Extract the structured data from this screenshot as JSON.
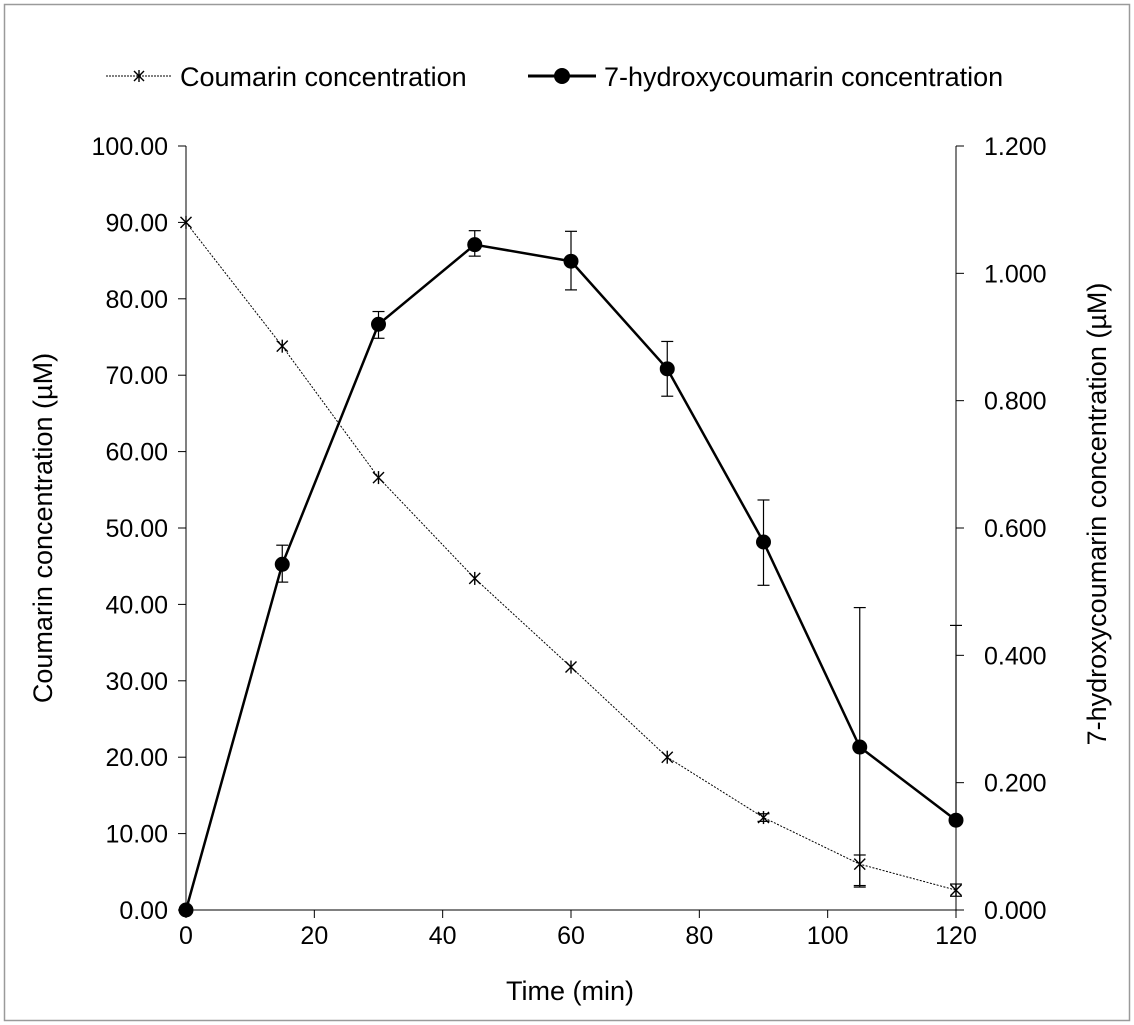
{
  "chart_data": {
    "type": "line",
    "x": [
      0,
      15,
      30,
      45,
      60,
      75,
      90,
      105,
      120
    ],
    "xlabel": "Time (min)",
    "xlim": [
      0,
      120
    ],
    "xticks": [
      "0",
      "20",
      "40",
      "60",
      "80",
      "100",
      "120"
    ],
    "ylabel": "Coumarin concentration (µM)",
    "ylim": [
      0,
      100
    ],
    "yticks": [
      "0.00",
      "10.00",
      "20.00",
      "30.00",
      "40.00",
      "50.00",
      "60.00",
      "70.00",
      "80.00",
      "90.00",
      "100.00"
    ],
    "y2label": "7-hydroxycoumarin concentration (µM)",
    "y2lim": [
      0,
      1.2
    ],
    "y2ticks": [
      "0.000",
      "0.200",
      "0.400",
      "0.600",
      "0.800",
      "1.000",
      "1.200"
    ],
    "legend_position": "top",
    "grid": false,
    "series": [
      {
        "name": "Coumarin concentration",
        "axis": "left",
        "marker": "asterisk",
        "line_style": "dotted-thin",
        "color": "#000000",
        "values": [
          90.0,
          73.8,
          56.6,
          43.4,
          31.8,
          20.0,
          12.1,
          6.0,
          2.6
        ],
        "err_low": [
          0,
          0,
          0,
          0,
          0,
          0,
          0.5,
          2.8,
          0.8
        ],
        "err_high": [
          0,
          0,
          0,
          0,
          0,
          0,
          0.5,
          1.2,
          0.8
        ]
      },
      {
        "name": "7-hydroxycoumarin concentration",
        "axis": "right",
        "marker": "filled-circle",
        "line_style": "solid-thick",
        "color": "#000000",
        "values": [
          0.0,
          0.543,
          0.92,
          1.045,
          1.019,
          0.85,
          0.578,
          0.256,
          0.141
        ],
        "err_low": [
          0,
          0.028,
          0.022,
          0.018,
          0.045,
          0.043,
          0.068,
          0.22,
          0
        ],
        "err_high": [
          0,
          0.03,
          0.02,
          0.022,
          0.047,
          0.043,
          0.066,
          0.219,
          0.306
        ]
      }
    ]
  }
}
